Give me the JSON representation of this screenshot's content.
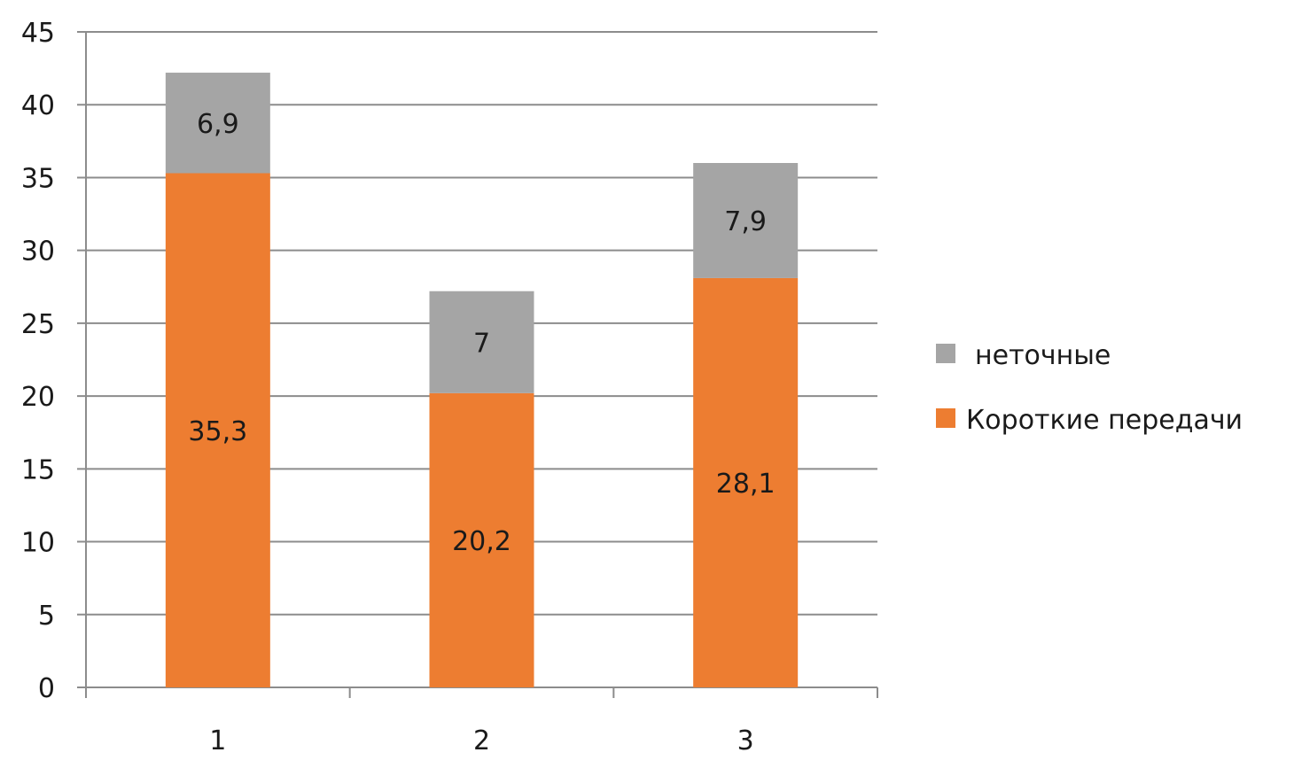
{
  "chart_data": {
    "type": "bar",
    "stacked": true,
    "categories": [
      "1",
      "2",
      "3"
    ],
    "series": [
      {
        "name": "Короткие  передачи",
        "values": [
          35.3,
          20.2,
          28.1
        ],
        "labels": [
          "35,3",
          "20,2",
          "28,1"
        ],
        "color": "#ed7d31"
      },
      {
        "name": "неточные",
        "values": [
          6.9,
          7,
          7.9
        ],
        "labels": [
          "6,9",
          "7",
          "7,9"
        ],
        "color": "#a5a5a5"
      }
    ],
    "ylim": [
      0,
      45
    ],
    "yticks": [
      0,
      5,
      10,
      15,
      20,
      25,
      30,
      35,
      40,
      45
    ],
    "ytick_labels": [
      "0",
      "5",
      "10",
      "15",
      "20",
      "25",
      "30",
      "35",
      "40",
      "45"
    ],
    "grid": true,
    "legend_position": "right",
    "legend_order": [
      "неточные",
      "Короткие  передачи"
    ],
    "title": "",
    "xlabel": "",
    "ylabel": ""
  }
}
